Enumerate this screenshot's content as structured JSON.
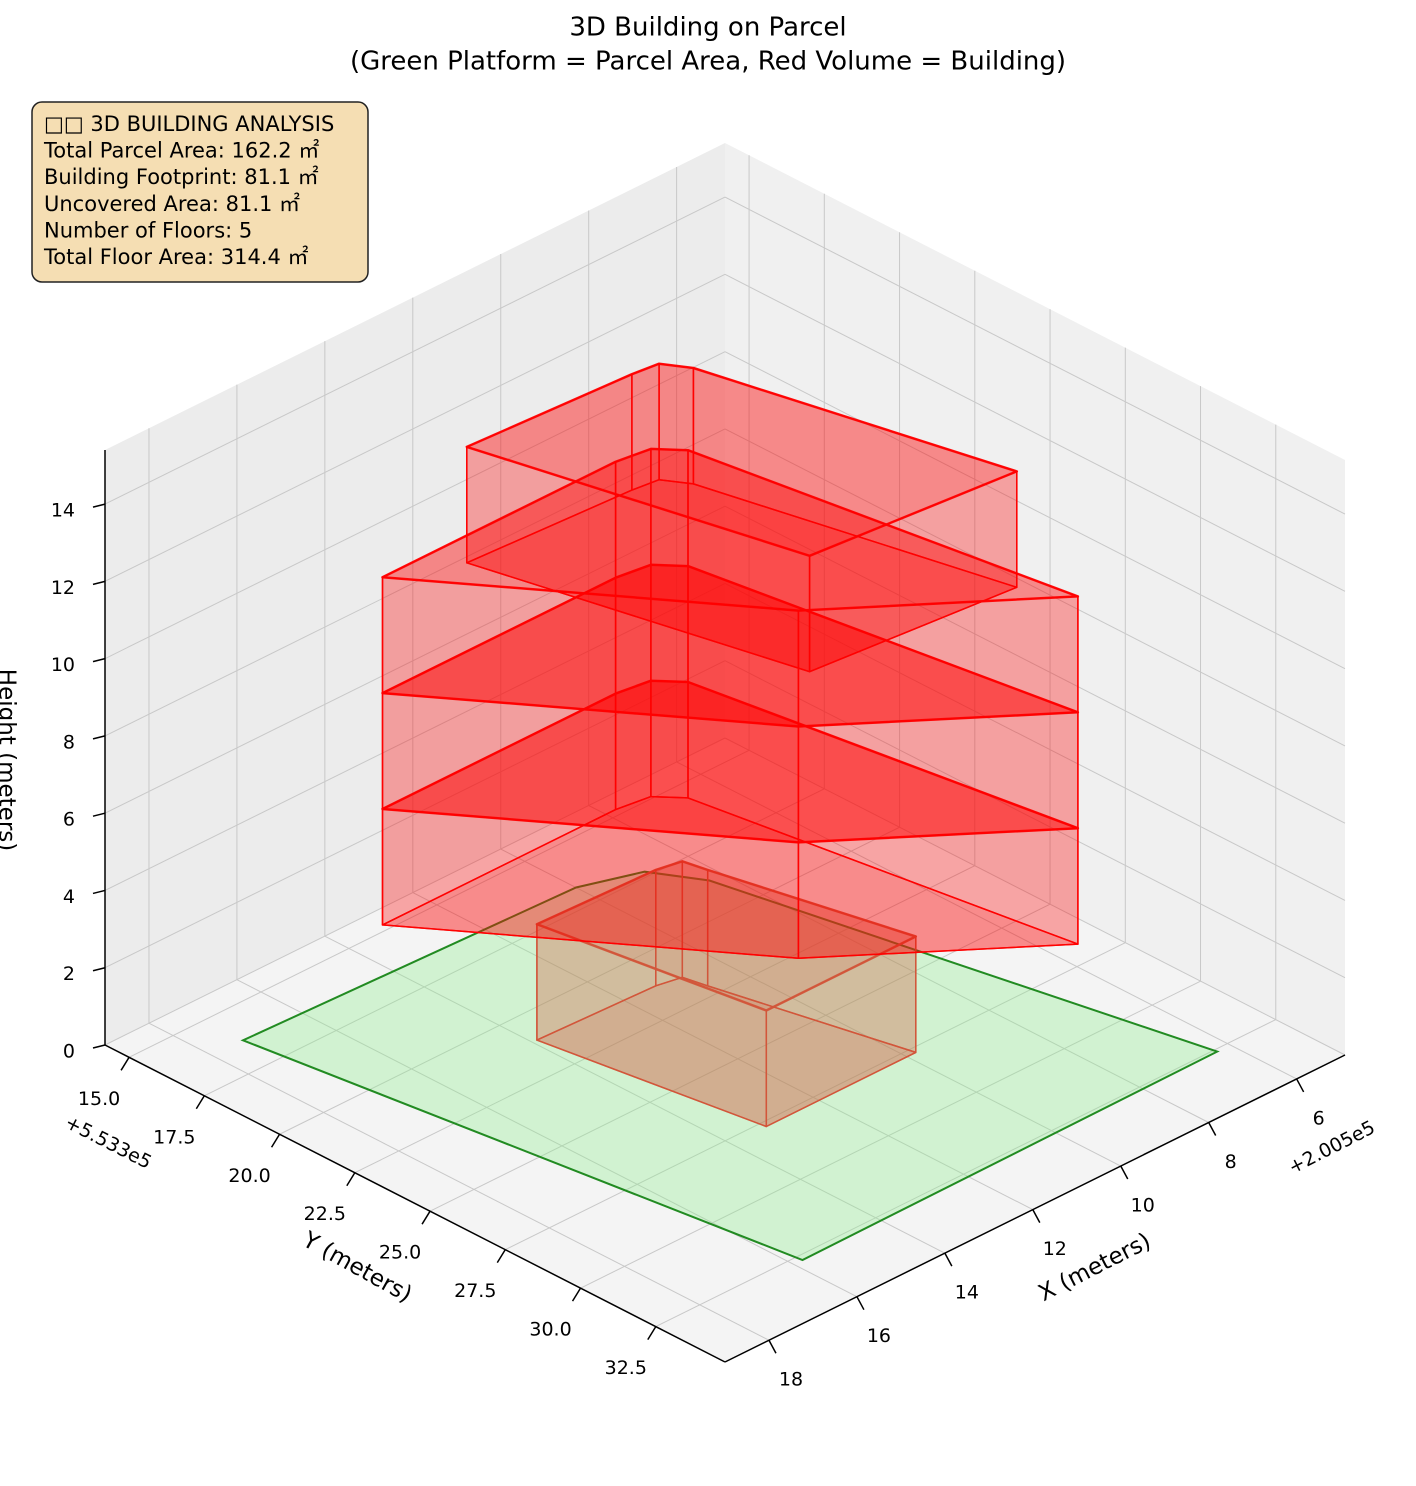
{
  "chart_data": {
    "type": "3d-building",
    "title": "3D Building on Parcel",
    "subtitle": "(Green Platform = Parcel Area, Red Volume = Building)",
    "info_lines": [
      "□□ 3D BUILDING ANALYSIS",
      "Total Parcel Area: 162.2 ㎡",
      "Building Footprint: 81.1 ㎡",
      "Uncovered Area: 81.1 ㎡",
      "Number of Floors: 5",
      "Total Floor Area: 314.4 ㎡"
    ],
    "xlabel": "X (meters)",
    "ylabel": "Y (meters)",
    "zlabel": "Height (meters)",
    "x_offset_label": "+2.005e5",
    "y_offset_label": "+5.533e5",
    "xlim": [
      4.9,
      19.0
    ],
    "ylim": [
      14.2,
      34.8
    ],
    "zlim": [
      0,
      15.4
    ],
    "xticks": [
      6,
      8,
      10,
      12,
      14,
      16,
      18
    ],
    "yticks": [
      {
        "value": 15,
        "label": "15.0"
      },
      17.5,
      {
        "value": 20,
        "label": "20.0"
      },
      22.5,
      {
        "value": 25,
        "label": "25.0"
      },
      27.5,
      {
        "value": 30,
        "label": "30.0"
      },
      32.5
    ],
    "zticks": [
      0,
      2,
      4,
      6,
      8,
      10,
      12,
      14
    ],
    "grid": true,
    "parcel": {
      "color": "#90ee90",
      "edge_color": "#228b22",
      "x": [
        17.3,
        15.8,
        6.3,
        8.3,
        8.85,
        10.0
      ],
      "y": [
        16.3,
        32.7,
        32.6,
        18.65,
        17.3,
        16.7
      ]
    },
    "floors": [
      {
        "z": [
          0,
          3
        ],
        "color": "#d2553a",
        "x": [
          13.9,
          13.2,
          9.8,
          10.7,
          10.8,
          11.3
        ],
        "y": [
          21.1,
          27.7,
          27.7,
          22.1,
          21.4,
          21.25
        ]
      },
      {
        "z": [
          3,
          6
        ],
        "color": "#ff0000",
        "x": [
          15.7,
          11.65,
          8.1,
          9.3,
          9.7,
          10.4
        ],
        "y": [
          18.6,
          26.5,
          30.6,
          19.4,
          18.75,
          18.6
        ]
      },
      {
        "z": [
          6,
          9
        ],
        "color": "#ff0000",
        "x": [
          15.7,
          11.65,
          8.1,
          9.3,
          9.7,
          10.4
        ],
        "y": [
          18.6,
          26.5,
          30.6,
          19.4,
          18.75,
          18.6
        ]
      },
      {
        "z": [
          9,
          12
        ],
        "color": "#ff0000",
        "x": [
          15.7,
          11.65,
          8.1,
          9.3,
          9.7,
          10.4
        ],
        "y": [
          18.6,
          26.5,
          30.6,
          19.4,
          18.75,
          18.6
        ]
      },
      {
        "z": [
          12,
          15
        ],
        "color": "#ff0000",
        "x": [
          14.4,
          12.9,
          8.6,
          10.0,
          10.3,
          10.85
        ],
        "y": [
          19.5,
          28.7,
          29.3,
          20.6,
          19.9,
          19.8
        ]
      }
    ]
  }
}
